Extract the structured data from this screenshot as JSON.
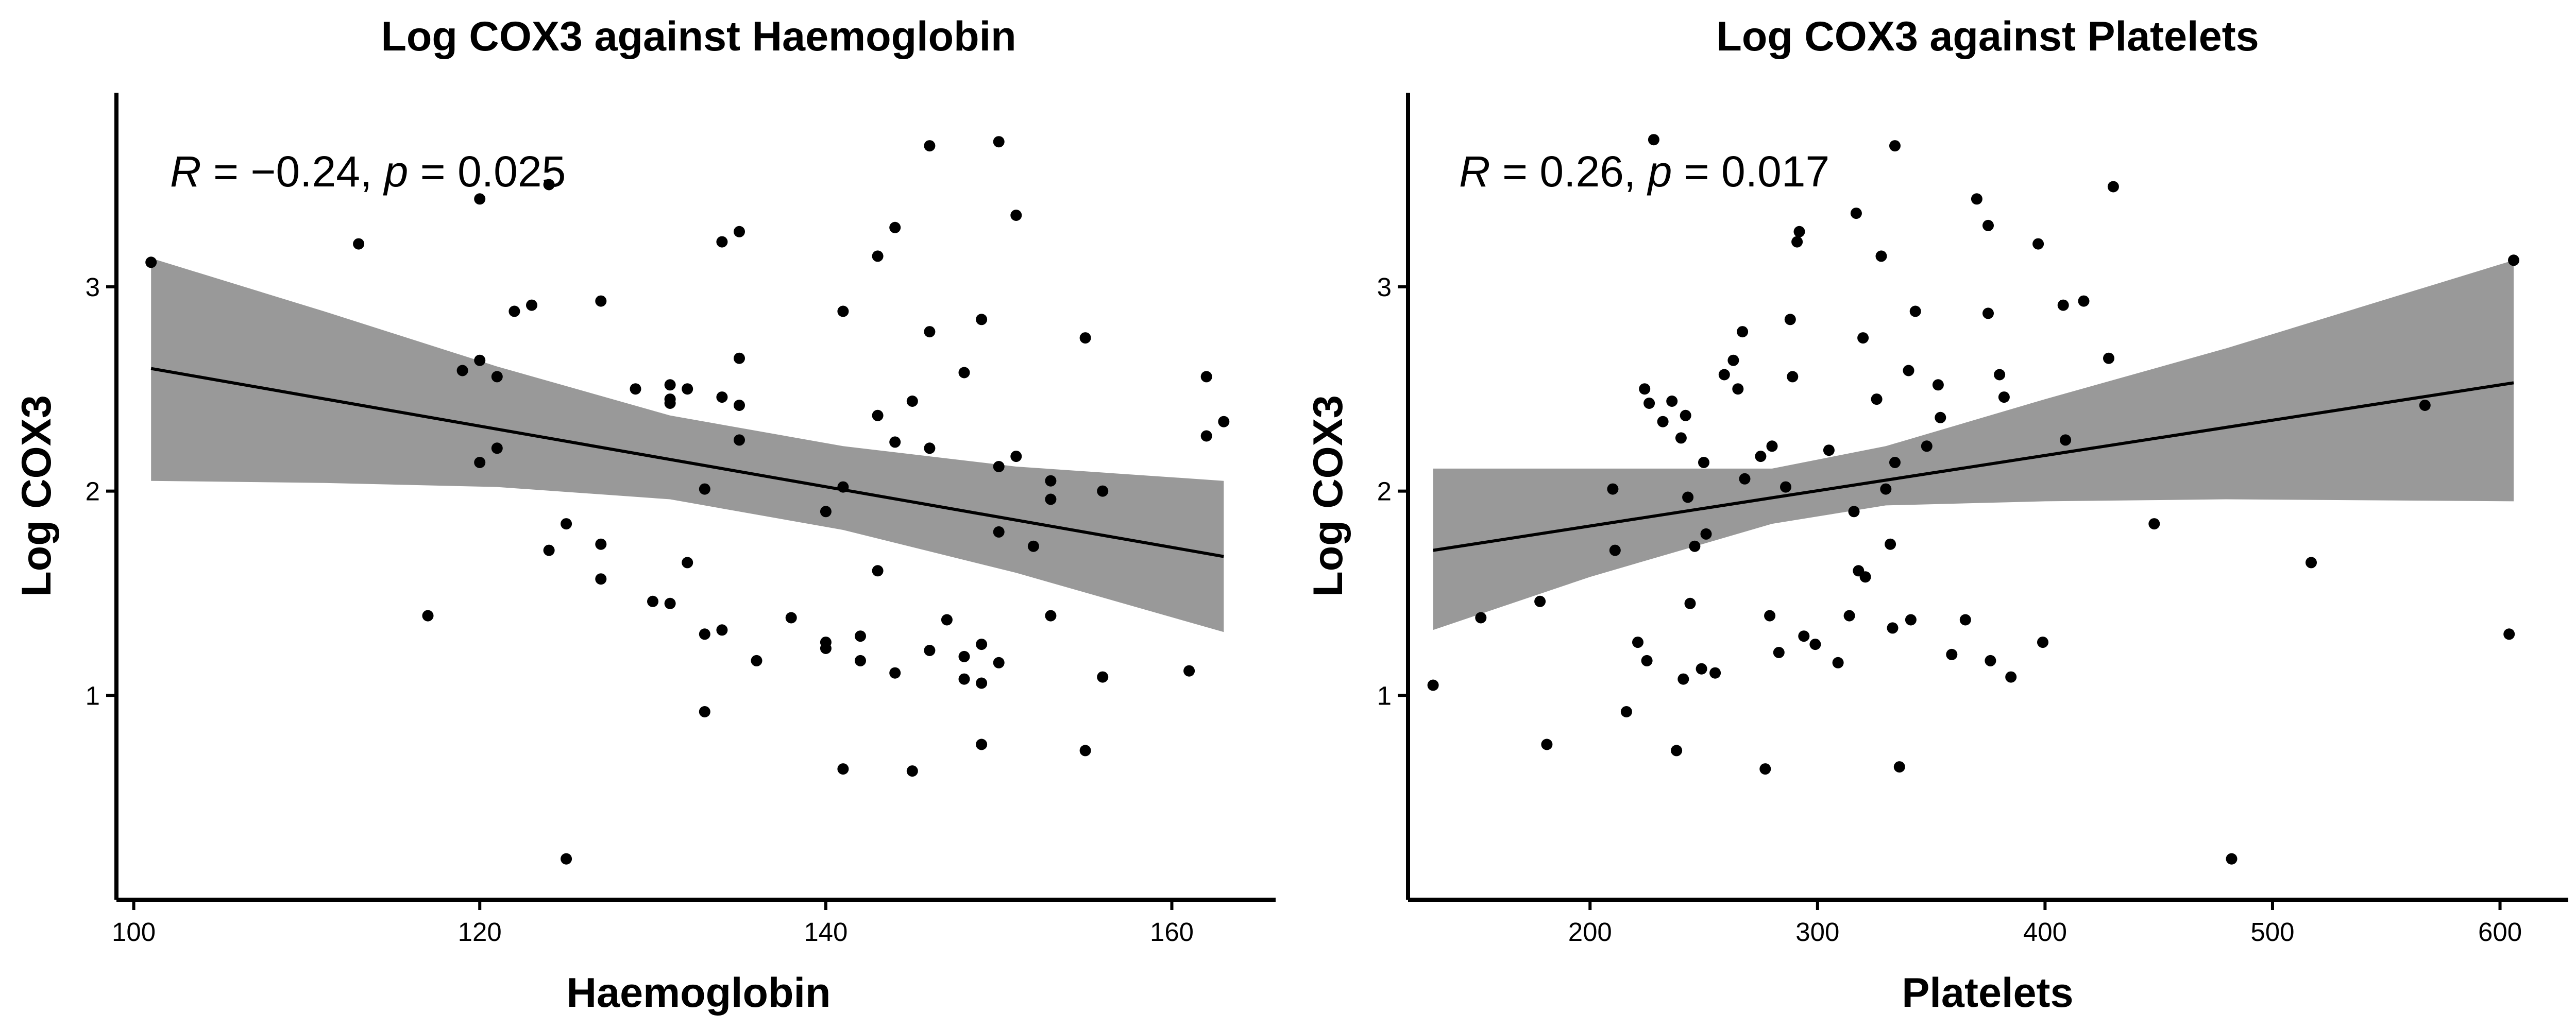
{
  "chart_data": [
    {
      "type": "scatter",
      "title": "Log COX3 against Haemoglobin",
      "xlabel": "Haemoglobin",
      "ylabel": "Log COX3",
      "xlim": [
        99,
        166
      ],
      "ylim": [
        0.0,
        3.95
      ],
      "xticks": [
        100,
        120,
        140,
        160
      ],
      "yticks": [
        1,
        2,
        3
      ],
      "annotation": {
        "r_symbol": "R",
        "r_value": " = −0.24, ",
        "p_symbol": "p",
        "p_value": " = 0.025"
      },
      "grid": false,
      "points": [
        [
          101,
          3.12
        ],
        [
          113,
          3.21
        ],
        [
          117,
          1.39
        ],
        [
          119,
          2.59
        ],
        [
          120,
          2.64
        ],
        [
          120,
          2.14
        ],
        [
          120,
          3.43
        ],
        [
          121,
          2.56
        ],
        [
          121,
          2.21
        ],
        [
          122,
          2.88
        ],
        [
          123,
          2.91
        ],
        [
          124,
          3.5
        ],
        [
          124,
          1.71
        ],
        [
          125,
          0.2
        ],
        [
          125,
          1.84
        ],
        [
          127,
          2.93
        ],
        [
          127,
          1.74
        ],
        [
          127,
          1.57
        ],
        [
          129,
          2.5
        ],
        [
          130,
          1.46
        ],
        [
          131,
          2.52
        ],
        [
          131,
          2.45
        ],
        [
          131,
          2.43
        ],
        [
          131,
          1.45
        ],
        [
          132,
          2.5
        ],
        [
          132,
          1.65
        ],
        [
          133,
          0.92
        ],
        [
          133,
          1.3
        ],
        [
          133,
          2.01
        ],
        [
          134,
          3.22
        ],
        [
          134,
          2.46
        ],
        [
          134,
          1.32
        ],
        [
          135,
          3.27
        ],
        [
          135,
          2.65
        ],
        [
          135,
          2.42
        ],
        [
          135,
          2.25
        ],
        [
          136,
          1.17
        ],
        [
          138,
          1.38
        ],
        [
          140,
          1.9
        ],
        [
          140,
          1.26
        ],
        [
          140,
          1.23
        ],
        [
          141,
          2.88
        ],
        [
          141,
          2.02
        ],
        [
          141,
          0.64
        ],
        [
          142,
          1.29
        ],
        [
          142,
          1.17
        ],
        [
          143,
          3.15
        ],
        [
          143,
          2.37
        ],
        [
          143,
          1.61
        ],
        [
          144,
          3.29
        ],
        [
          144,
          2.24
        ],
        [
          144,
          1.11
        ],
        [
          145,
          2.44
        ],
        [
          145,
          0.63
        ],
        [
          146,
          3.69
        ],
        [
          146,
          2.78
        ],
        [
          146,
          2.21
        ],
        [
          146,
          1.22
        ],
        [
          147,
          1.37
        ],
        [
          148,
          2.58
        ],
        [
          148,
          1.19
        ],
        [
          148,
          1.08
        ],
        [
          149,
          2.84
        ],
        [
          149,
          1.25
        ],
        [
          149,
          1.06
        ],
        [
          149,
          0.76
        ],
        [
          150,
          3.71
        ],
        [
          150,
          2.12
        ],
        [
          150,
          1.8
        ],
        [
          150,
          1.16
        ],
        [
          151,
          3.35
        ],
        [
          151,
          2.17
        ],
        [
          152,
          1.73
        ],
        [
          153,
          2.05
        ],
        [
          153,
          1.96
        ],
        [
          153,
          1.39
        ],
        [
          155,
          2.75
        ],
        [
          155,
          0.73
        ],
        [
          156,
          2.0
        ],
        [
          156,
          1.09
        ],
        [
          161,
          1.12
        ],
        [
          162,
          2.56
        ],
        [
          162,
          2.27
        ],
        [
          163,
          2.34
        ]
      ],
      "trend_line": {
        "x": [
          101,
          163
        ],
        "y": [
          2.6,
          1.68
        ]
      },
      "confidence_band": {
        "x": [
          101,
          111,
          121,
          131,
          141,
          151,
          163
        ],
        "upper": [
          3.14,
          2.88,
          2.61,
          2.37,
          2.22,
          2.12,
          2.05
        ],
        "lower": [
          2.05,
          2.04,
          2.02,
          1.96,
          1.81,
          1.6,
          1.31
        ]
      }
    },
    {
      "type": "scatter",
      "title": "Log COX3 against Platelets",
      "xlabel": "Platelets",
      "ylabel": "Log COX3",
      "xlim": [
        120,
        630
      ],
      "ylim": [
        0.0,
        3.95
      ],
      "xticks": [
        200,
        300,
        400,
        500,
        600
      ],
      "yticks": [
        1,
        2,
        3
      ],
      "annotation": {
        "r_symbol": "R",
        "r_value": " = 0.26, ",
        "p_symbol": "p",
        "p_value": " = 0.017"
      },
      "grid": false,
      "points": [
        [
          131,
          1.05
        ],
        [
          152,
          1.38
        ],
        [
          178,
          1.46
        ],
        [
          181,
          0.76
        ],
        [
          210,
          2.01
        ],
        [
          211,
          1.71
        ],
        [
          216,
          0.92
        ],
        [
          221,
          1.26
        ],
        [
          224,
          2.5
        ],
        [
          225,
          1.17
        ],
        [
          226,
          2.43
        ],
        [
          228,
          3.72
        ],
        [
          232,
          2.34
        ],
        [
          236,
          2.44
        ],
        [
          238,
          0.73
        ],
        [
          240,
          2.26
        ],
        [
          241,
          1.08
        ],
        [
          242,
          2.37
        ],
        [
          243,
          1.97
        ],
        [
          244,
          1.45
        ],
        [
          246,
          1.73
        ],
        [
          249,
          1.13
        ],
        [
          250,
          2.14
        ],
        [
          251,
          1.79
        ],
        [
          255,
          1.11
        ],
        [
          259,
          2.57
        ],
        [
          263,
          2.64
        ],
        [
          265,
          2.5
        ],
        [
          267,
          2.78
        ],
        [
          268,
          2.06
        ],
        [
          275,
          2.17
        ],
        [
          277,
          0.64
        ],
        [
          279,
          1.39
        ],
        [
          280,
          2.22
        ],
        [
          283,
          1.21
        ],
        [
          286,
          2.02
        ],
        [
          288,
          2.84
        ],
        [
          289,
          2.56
        ],
        [
          291,
          3.22
        ],
        [
          292,
          3.27
        ],
        [
          294,
          1.29
        ],
        [
          299,
          1.25
        ],
        [
          305,
          2.2
        ],
        [
          309,
          1.16
        ],
        [
          314,
          1.39
        ],
        [
          316,
          1.9
        ],
        [
          317,
          3.36
        ],
        [
          318,
          1.61
        ],
        [
          320,
          2.75
        ],
        [
          321,
          1.58
        ],
        [
          326,
          2.45
        ],
        [
          328,
          3.15
        ],
        [
          330,
          2.01
        ],
        [
          332,
          1.74
        ],
        [
          333,
          1.33
        ],
        [
          334,
          2.14
        ],
        [
          334,
          3.69
        ],
        [
          336,
          0.65
        ],
        [
          340,
          2.59
        ],
        [
          341,
          1.37
        ],
        [
          343,
          2.88
        ],
        [
          348,
          2.22
        ],
        [
          353,
          2.52
        ],
        [
          354,
          2.36
        ],
        [
          359,
          1.2
        ],
        [
          365,
          1.37
        ],
        [
          370,
          3.43
        ],
        [
          375,
          3.3
        ],
        [
          375,
          2.87
        ],
        [
          376,
          1.17
        ],
        [
          380,
          2.57
        ],
        [
          382,
          2.46
        ],
        [
          385,
          1.09
        ],
        [
          397,
          3.21
        ],
        [
          399,
          1.26
        ],
        [
          408,
          2.91
        ],
        [
          409,
          2.25
        ],
        [
          417,
          2.93
        ],
        [
          428,
          2.65
        ],
        [
          430,
          3.49
        ],
        [
          448,
          1.84
        ],
        [
          482,
          0.2
        ],
        [
          517,
          1.65
        ],
        [
          567,
          2.42
        ],
        [
          604,
          1.3
        ],
        [
          606,
          3.13
        ]
      ],
      "trend_line": {
        "x": [
          131,
          606
        ],
        "y": [
          1.71,
          2.53
        ]
      },
      "confidence_band": {
        "x": [
          131,
          200,
          280,
          330,
          400,
          480,
          606
        ],
        "upper": [
          2.11,
          2.11,
          2.11,
          2.22,
          2.45,
          2.7,
          3.13
        ],
        "lower": [
          1.32,
          1.58,
          1.84,
          1.93,
          1.95,
          1.96,
          1.95
        ]
      }
    }
  ]
}
